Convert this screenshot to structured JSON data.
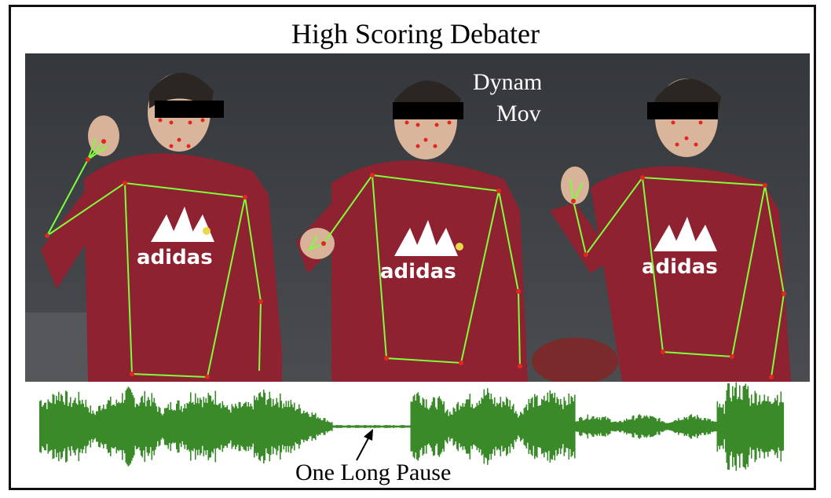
{
  "title": "High Scoring Debater",
  "annotations": {
    "body_movements_line1": "Dynamic Body",
    "body_movements_line2": "Movements",
    "pause": "One Long Pause"
  },
  "shirt_logo_text": "adidas",
  "colors": {
    "shirt": "#8f2231",
    "skeleton": "#7dff3a",
    "keypoint": "#e3261f",
    "waveform": "#3a8a2a",
    "background_wall": "#3e4146"
  }
}
